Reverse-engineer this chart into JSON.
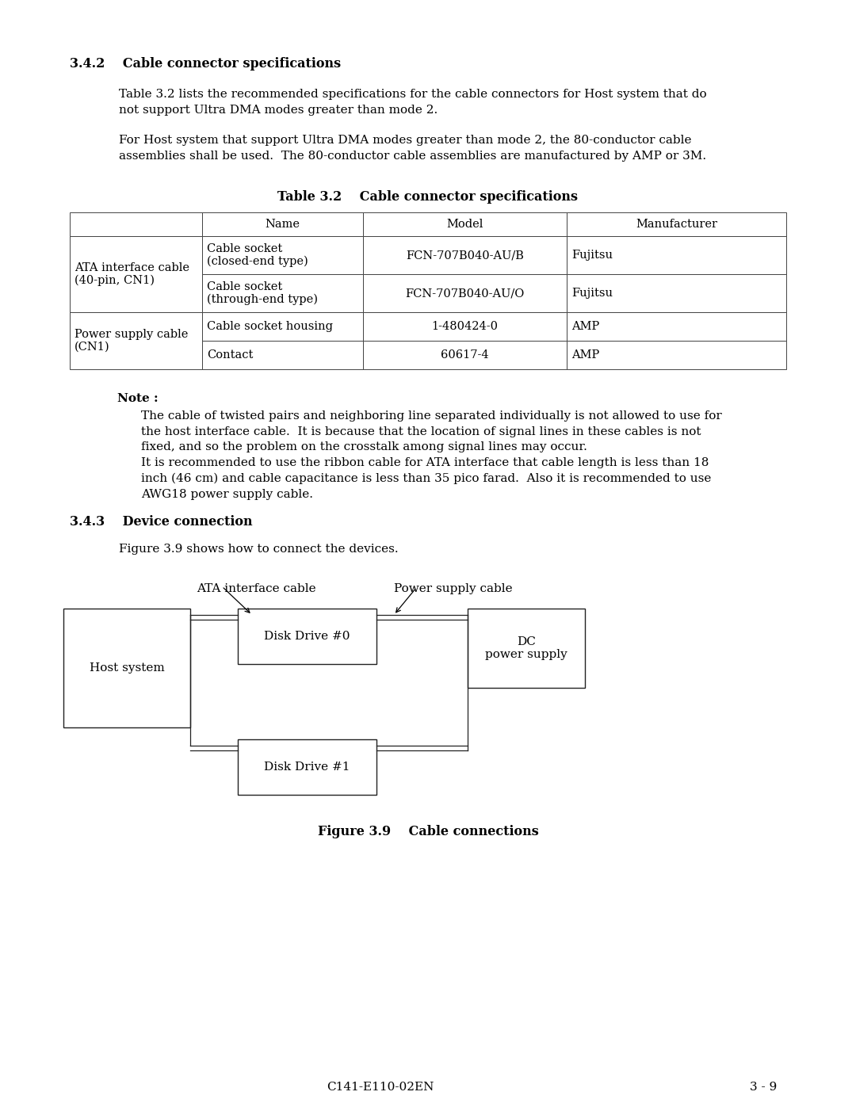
{
  "bg_color": "#ffffff",
  "section_342_title": "3.4.2    Cable connector specifications",
  "para1": "Table 3.2 lists the recommended specifications for the cable connectors for Host system that do\nnot support Ultra DMA modes greater than mode 2.",
  "para2": "For Host system that support Ultra DMA modes greater than mode 2, the 80-conductor cable\nassemblies shall be used.  The 80-conductor cable assemblies are manufactured by AMP or 3M.",
  "table_title": "Table 3.2    Cable connector specifications",
  "table_headers": [
    "",
    "Name",
    "Model",
    "Manufacturer"
  ],
  "note_title": "Note :",
  "note_text": "The cable of twisted pairs and neighboring line separated individually is not allowed to use for\nthe host interface cable.  It is because that the location of signal lines in these cables is not\nfixed, and so the problem on the crosstalk among signal lines may occur.\nIt is recommended to use the ribbon cable for ATA interface that cable length is less than 18\ninch (46 cm) and cable capacitance is less than 35 pico farad.  Also it is recommended to use\nAWG18 power supply cable.",
  "section_343_title": "3.4.3    Device connection",
  "para343": "Figure 3.9 shows how to connect the devices.",
  "fig_caption": "Figure 3.9    Cable connections",
  "footer_left": "C141-E110-02EN",
  "footer_right": "3 - 9",
  "diagram": {
    "host_label": "Host system",
    "dd0_label": "Disk Drive #0",
    "dd1_label": "Disk Drive #1",
    "dc_label": "DC\npower supply",
    "ata_label": "ATA interface cable",
    "pwr_label": "Power supply cable"
  }
}
